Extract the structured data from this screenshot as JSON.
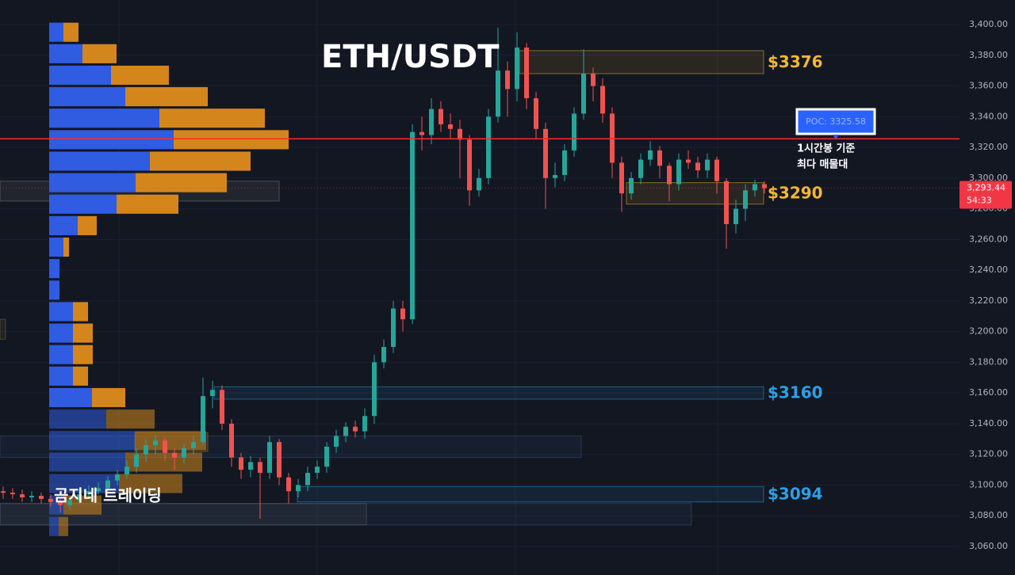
{
  "chart_data": {
    "type": "candlestick",
    "title": "ETH/USDT",
    "watermark": "곰지네 트레이딩",
    "colors": {
      "up": "#26a69a",
      "down": "#ef5350",
      "buy": "#2f5ce0",
      "sell": "#d4861c",
      "poc": "#ff2a2a"
    },
    "ylim": [
      3050,
      3410
    ],
    "yticks": [
      {
        "value": 3060,
        "label": "3,060.00"
      },
      {
        "value": 3080,
        "label": "3,080.00"
      },
      {
        "value": 3100,
        "label": "3,100.00"
      },
      {
        "value": 3120,
        "label": "3,120.00"
      },
      {
        "value": 3140,
        "label": "3,140.00"
      },
      {
        "value": 3160,
        "label": "3,160.00"
      },
      {
        "value": 3180,
        "label": "3,180.00"
      },
      {
        "value": 3200,
        "label": "3,200.00"
      },
      {
        "value": 3220,
        "label": "3,220.00"
      },
      {
        "value": 3240,
        "label": "3,240.00"
      },
      {
        "value": 3260,
        "label": "3,260.00"
      },
      {
        "value": 3280,
        "label": "3,280.00"
      },
      {
        "value": 3300,
        "label": "3,300.00"
      },
      {
        "value": 3320,
        "label": "3,320.00"
      },
      {
        "value": 3340,
        "label": "3,340.00"
      },
      {
        "value": 3360,
        "label": "3,360.00"
      },
      {
        "value": 3380,
        "label": "3,380.00"
      },
      {
        "value": 3400,
        "label": "3,400.00"
      }
    ],
    "grid": true,
    "candles": [
      [
        3096,
        3099,
        3091,
        3095
      ],
      [
        3095,
        3098,
        3091,
        3094
      ],
      [
        3094,
        3097,
        3089,
        3092
      ],
      [
        3092,
        3096,
        3089,
        3093
      ],
      [
        3093,
        3095,
        3088,
        3091
      ],
      [
        3091,
        3094,
        3086,
        3089
      ],
      [
        3089,
        3092,
        3082,
        3087
      ],
      [
        3087,
        3093,
        3084,
        3090
      ],
      [
        3090,
        3097,
        3088,
        3094
      ],
      [
        3094,
        3100,
        3091,
        3096
      ],
      [
        3096,
        3102,
        3094,
        3098
      ],
      [
        3098,
        3106,
        3096,
        3103
      ],
      [
        3103,
        3110,
        3100,
        3107
      ],
      [
        3107,
        3116,
        3104,
        3112
      ],
      [
        3112,
        3124,
        3108,
        3120
      ],
      [
        3120,
        3130,
        3115,
        3126
      ],
      [
        3126,
        3133,
        3120,
        3129
      ],
      [
        3129,
        3131,
        3116,
        3121
      ],
      [
        3121,
        3124,
        3110,
        3118
      ],
      [
        3118,
        3127,
        3114,
        3124
      ],
      [
        3124,
        3132,
        3120,
        3128
      ],
      [
        3128,
        3170,
        3126,
        3158
      ],
      [
        3158,
        3168,
        3150,
        3162
      ],
      [
        3162,
        3165,
        3136,
        3140
      ],
      [
        3140,
        3143,
        3112,
        3118
      ],
      [
        3118,
        3121,
        3104,
        3110
      ],
      [
        3110,
        3119,
        3105,
        3115
      ],
      [
        3115,
        3118,
        3078,
        3108
      ],
      [
        3108,
        3132,
        3104,
        3128
      ],
      [
        3128,
        3130,
        3100,
        3105
      ],
      [
        3105,
        3108,
        3088,
        3096
      ],
      [
        3096,
        3104,
        3092,
        3100
      ],
      [
        3100,
        3112,
        3096,
        3108
      ],
      [
        3108,
        3116,
        3104,
        3112
      ],
      [
        3112,
        3128,
        3108,
        3125
      ],
      [
        3125,
        3136,
        3121,
        3132
      ],
      [
        3132,
        3141,
        3128,
        3138
      ],
      [
        3138,
        3142,
        3131,
        3135
      ],
      [
        3135,
        3150,
        3130,
        3145
      ],
      [
        3145,
        3185,
        3140,
        3180
      ],
      [
        3180,
        3195,
        3176,
        3190
      ],
      [
        3190,
        3220,
        3186,
        3215
      ],
      [
        3215,
        3220,
        3200,
        3208
      ],
      [
        3208,
        3335,
        3205,
        3330
      ],
      [
        3330,
        3340,
        3318,
        3328
      ],
      [
        3328,
        3352,
        3322,
        3345
      ],
      [
        3345,
        3350,
        3330,
        3335
      ],
      [
        3335,
        3342,
        3326,
        3332
      ],
      [
        3332,
        3338,
        3300,
        3325
      ],
      [
        3325,
        3328,
        3282,
        3292
      ],
      [
        3292,
        3306,
        3288,
        3300
      ],
      [
        3300,
        3345,
        3296,
        3340
      ],
      [
        3340,
        3398,
        3336,
        3370
      ],
      [
        3370,
        3376,
        3340,
        3358
      ],
      [
        3358,
        3395,
        3350,
        3385
      ],
      [
        3385,
        3388,
        3345,
        3352
      ],
      [
        3352,
        3356,
        3326,
        3332
      ],
      [
        3332,
        3336,
        3280,
        3300
      ],
      [
        3300,
        3310,
        3294,
        3302
      ],
      [
        3302,
        3322,
        3298,
        3318
      ],
      [
        3318,
        3346,
        3314,
        3342
      ],
      [
        3342,
        3384,
        3338,
        3368
      ],
      [
        3368,
        3372,
        3350,
        3360
      ],
      [
        3360,
        3365,
        3336,
        3342
      ],
      [
        3342,
        3346,
        3300,
        3310
      ],
      [
        3310,
        3314,
        3278,
        3290
      ],
      [
        3290,
        3304,
        3286,
        3300
      ],
      [
        3300,
        3316,
        3296,
        3312
      ],
      [
        3312,
        3324,
        3308,
        3318
      ],
      [
        3318,
        3321,
        3300,
        3308
      ],
      [
        3308,
        3310,
        3285,
        3296
      ],
      [
        3296,
        3316,
        3292,
        3312
      ],
      [
        3312,
        3318,
        3306,
        3310
      ],
      [
        3310,
        3314,
        3300,
        3305
      ],
      [
        3305,
        3316,
        3300,
        3312
      ],
      [
        3312,
        3314,
        3290,
        3298
      ],
      [
        3298,
        3300,
        3254,
        3270
      ],
      [
        3270,
        3286,
        3264,
        3280
      ],
      [
        3280,
        3296,
        3272,
        3292
      ],
      [
        3292,
        3299,
        3288,
        3296
      ],
      [
        3296,
        3298,
        3290,
        3293.44
      ]
    ],
    "profile": {
      "bins": [
        3402,
        3388,
        3374,
        3360,
        3346,
        3332,
        3318,
        3304,
        3290,
        3276,
        3262,
        3248,
        3234,
        3220,
        3206,
        3192,
        3178,
        3164,
        3150,
        3136,
        3122,
        3108,
        3094,
        3080,
        3066
      ],
      "buy": [
        18,
        42,
        78,
        96,
        139,
        157,
        127,
        109,
        85,
        36,
        18,
        13,
        13,
        30,
        30,
        30,
        30,
        54,
        72,
        108,
        96,
        88,
        18,
        12
      ],
      "sell": [
        19,
        43,
        73,
        104,
        133,
        145,
        127,
        115,
        78,
        24,
        7,
        0,
        0,
        19,
        25,
        25,
        19,
        42,
        61,
        90,
        97,
        80,
        48,
        12
      ]
    },
    "levels": [
      {
        "label": "$3376",
        "range": [
          3368,
          3383
        ],
        "color": "#f5b82e"
      },
      {
        "label": "$3290",
        "range": [
          3283,
          3297
        ],
        "color": "#f5b82e"
      },
      {
        "label": "$3160",
        "range": [
          3156,
          3164
        ],
        "color": "#2aa1e6"
      },
      {
        "label": "$3094",
        "range": [
          3089,
          3099
        ],
        "color": "#2aa1e6"
      }
    ],
    "boxes": [
      {
        "range": [
          3285,
          3298
        ]
      },
      {
        "range": [
          3118,
          3132
        ]
      },
      {
        "range": [
          3074,
          3088
        ]
      },
      {
        "range": [
          3074,
          3088
        ]
      },
      {
        "range": [
          3195,
          3208
        ]
      },
      {
        "range": [
          3122,
          3134
        ]
      }
    ],
    "poc": {
      "value": 3325.58,
      "label": "POC: 3325.58",
      "note": [
        "1시간봉 기준",
        "최다 매물대"
      ]
    },
    "last_price": {
      "value": 3293.44,
      "label": "3,293.44",
      "countdown": "54:33"
    }
  }
}
